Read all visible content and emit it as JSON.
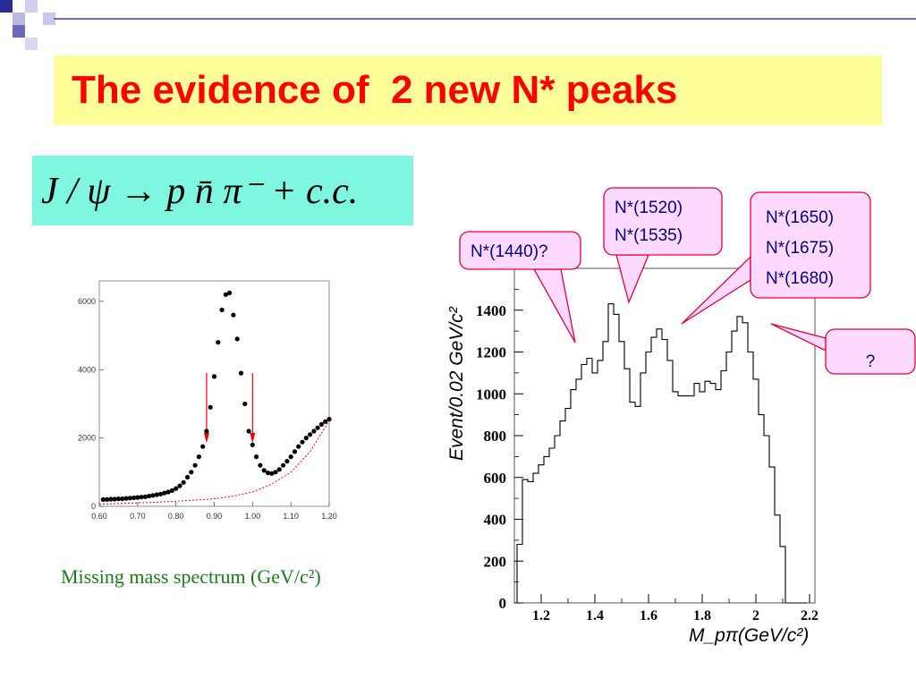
{
  "slide": {
    "title": "The evidence of  2 new N* peaks",
    "formula": "J / ψ → p n̄ π⁻ + c.c.",
    "caption": "Missing mass spectrum (GeV/c²)"
  },
  "callouts": [
    {
      "lines": [
        "N*(1440)?"
      ]
    },
    {
      "lines": [
        "N*(1520)",
        "N*(1535)"
      ]
    },
    {
      "lines": [
        "N*(1650)",
        "N*(1675)",
        "N*(1680)"
      ]
    },
    {
      "lines": [
        "?"
      ]
    }
  ],
  "colors": {
    "title": "#ff0000",
    "title_bg": "#ffff99",
    "formula_bg": "#7ff7e0",
    "caption": "#1f7a1f",
    "callout_bg": "#ffd9ff",
    "callout_border": "#e0003c",
    "callout_text": "#000080",
    "fit_curve": "#ff0000"
  },
  "chart_data": [
    {
      "type": "scatter",
      "xlabel": "",
      "ylabel": "",
      "xlim": [
        0.6,
        1.2
      ],
      "ylim": [
        0,
        6600
      ],
      "x_ticks": [
        "0.60",
        "0.70",
        "0.80",
        "0.90",
        "1.00",
        "1.10",
        "1.20"
      ],
      "y_ticks": [
        "0",
        "2000",
        "4000",
        "6000"
      ],
      "series": [
        {
          "x": [
            0.61,
            0.62,
            0.63,
            0.64,
            0.65,
            0.66,
            0.67,
            0.68,
            0.69,
            0.7,
            0.71,
            0.72,
            0.73,
            0.74,
            0.75,
            0.76,
            0.77,
            0.78,
            0.79,
            0.8,
            0.81,
            0.82,
            0.83,
            0.84,
            0.85,
            0.86,
            0.87,
            0.88,
            0.89,
            0.9,
            0.91,
            0.92,
            0.93,
            0.94,
            0.95,
            0.96,
            0.97,
            0.98,
            0.99,
            1.0,
            1.01,
            1.02,
            1.03,
            1.04,
            1.05,
            1.06,
            1.07,
            1.08,
            1.09,
            1.1,
            1.11,
            1.12,
            1.13,
            1.14,
            1.15,
            1.16,
            1.17,
            1.18,
            1.19,
            1.2
          ],
          "y": [
            200,
            200,
            210,
            210,
            220,
            220,
            230,
            240,
            250,
            260,
            270,
            280,
            300,
            320,
            340,
            360,
            390,
            420,
            460,
            520,
            600,
            700,
            850,
            1000,
            1200,
            1450,
            1750,
            2200,
            2900,
            3800,
            4800,
            5750,
            6200,
            6250,
            5600,
            4900,
            3900,
            3000,
            2200,
            1800,
            1450,
            1200,
            1050,
            980,
            960,
            1000,
            1080,
            1200,
            1320,
            1450,
            1600,
            1750,
            1880,
            2000,
            2100,
            2200,
            2300,
            2400,
            2480,
            2550
          ]
        },
        {
          "name": "background",
          "x": [
            0.6,
            0.65,
            0.7,
            0.75,
            0.8,
            0.85,
            0.9,
            0.95,
            1.0,
            1.05,
            1.1,
            1.15,
            1.2
          ],
          "y": [
            60,
            80,
            100,
            120,
            150,
            180,
            220,
            300,
            420,
            650,
            1000,
            1600,
            2500
          ]
        }
      ],
      "annotations": [
        {
          "x": 0.88
        },
        {
          "x": 1.0
        }
      ]
    },
    {
      "type": "histogram",
      "xlabel": "M_pπ(GeV/c²)",
      "ylabel": "Event/0.02 GeV/c²",
      "xlim": [
        1.1,
        2.22
      ],
      "ylim": [
        0,
        1600
      ],
      "x_ticks": [
        "1.2",
        "1.4",
        "1.6",
        "1.8",
        "2",
        "2.2"
      ],
      "y_ticks": [
        "0",
        "200",
        "400",
        "600",
        "800",
        "1000",
        "1200",
        "1400"
      ],
      "bins": [
        1.12,
        1.14,
        1.16,
        1.18,
        1.2,
        1.22,
        1.24,
        1.26,
        1.28,
        1.3,
        1.32,
        1.34,
        1.36,
        1.38,
        1.4,
        1.42,
        1.44,
        1.46,
        1.48,
        1.5,
        1.52,
        1.54,
        1.56,
        1.58,
        1.6,
        1.62,
        1.64,
        1.66,
        1.68,
        1.7,
        1.72,
        1.74,
        1.76,
        1.78,
        1.8,
        1.82,
        1.84,
        1.86,
        1.88,
        1.9,
        1.92,
        1.94,
        1.96,
        1.98,
        2.0,
        2.02,
        2.04,
        2.06,
        2.08,
        2.1,
        2.12,
        2.14,
        2.16,
        2.18
      ],
      "values": [
        280,
        590,
        580,
        620,
        660,
        700,
        740,
        800,
        870,
        930,
        1020,
        1070,
        1140,
        1170,
        1100,
        1160,
        1250,
        1430,
        1380,
        1250,
        1120,
        960,
        940,
        1100,
        1200,
        1270,
        1310,
        1260,
        1160,
        1010,
        990,
        990,
        990,
        1050,
        1010,
        1060,
        1050,
        1020,
        1110,
        1200,
        1300,
        1370,
        1340,
        1200,
        1070,
        900,
        800,
        650,
        420,
        270,
        0,
        0,
        0,
        0
      ]
    }
  ]
}
